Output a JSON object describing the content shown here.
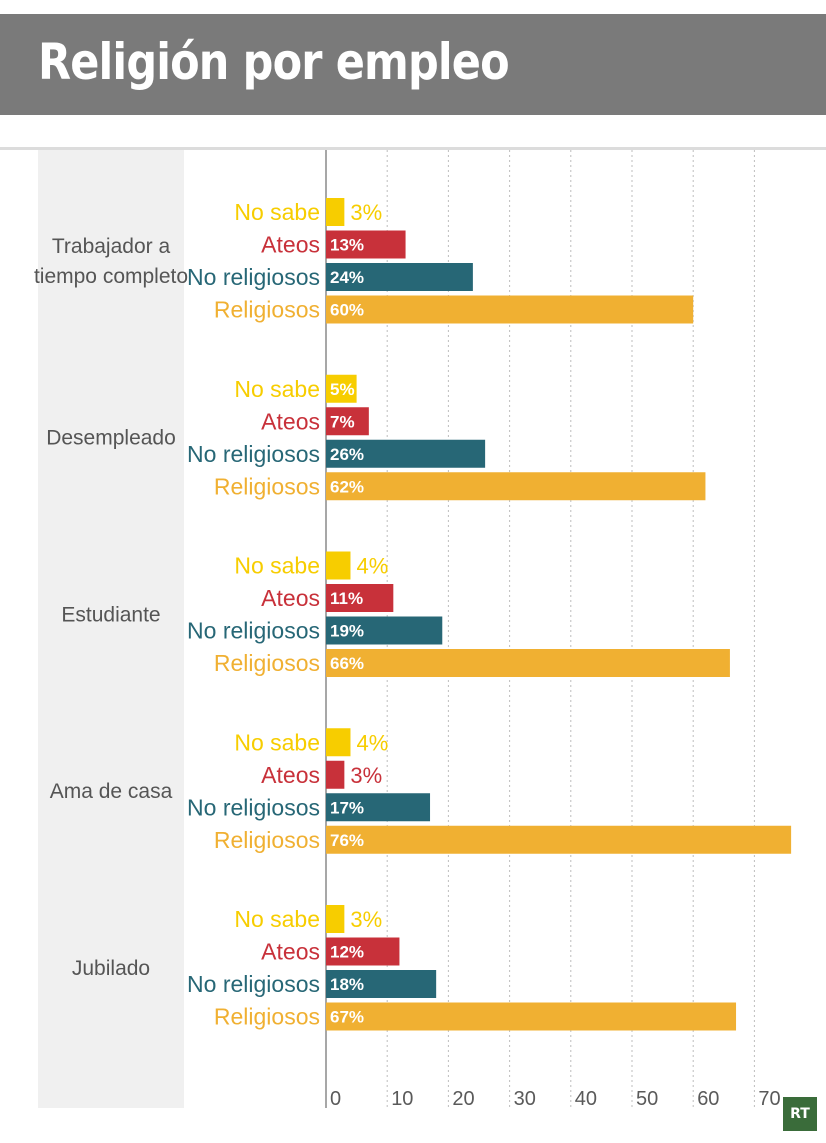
{
  "title": "Religión por empleo",
  "logo_text": "RT",
  "colors": {
    "header_bg": "#7a7a7a",
    "No sabe": "#f7cd00",
    "Ateos": "#c8313a",
    "No religiosos": "#276776",
    "Religiosos": "#f0b032"
  },
  "chart_data": {
    "type": "bar",
    "orientation": "horizontal",
    "title": "Religión por empleo",
    "xlabel": "",
    "ylabel": "",
    "xlim": [
      0,
      76
    ],
    "x_ticks": [
      0,
      10,
      20,
      30,
      40,
      50,
      60,
      70
    ],
    "grid": "vertical dashed",
    "categories": [
      "Trabajador a tiempo completo",
      "Desempleado",
      "Estudiante",
      "Ama de casa",
      "Jubilado"
    ],
    "category_lines": [
      [
        "Trabajador a",
        "tiempo completo"
      ],
      [
        "Desempleado"
      ],
      [
        "Estudiante"
      ],
      [
        "Ama de casa"
      ],
      [
        "Jubilado"
      ]
    ],
    "series": [
      {
        "name": "No sabe",
        "values": [
          3,
          5,
          4,
          4,
          3
        ],
        "labels": [
          "3%",
          "5%",
          "4%",
          "4%",
          "3%"
        ]
      },
      {
        "name": "Ateos",
        "values": [
          13,
          7,
          11,
          3,
          12
        ],
        "labels": [
          "13%",
          "7%",
          "11%",
          "3%",
          "12%"
        ]
      },
      {
        "name": "No religiosos",
        "values": [
          24,
          26,
          19,
          17,
          18
        ],
        "labels": [
          "24%",
          "26%",
          "19%",
          "17%",
          "18%"
        ]
      },
      {
        "name": "Religiosos",
        "values": [
          60,
          62,
          66,
          76,
          67
        ],
        "labels": [
          "60%",
          "62%",
          "66%",
          "76%",
          "67%"
        ]
      }
    ]
  }
}
